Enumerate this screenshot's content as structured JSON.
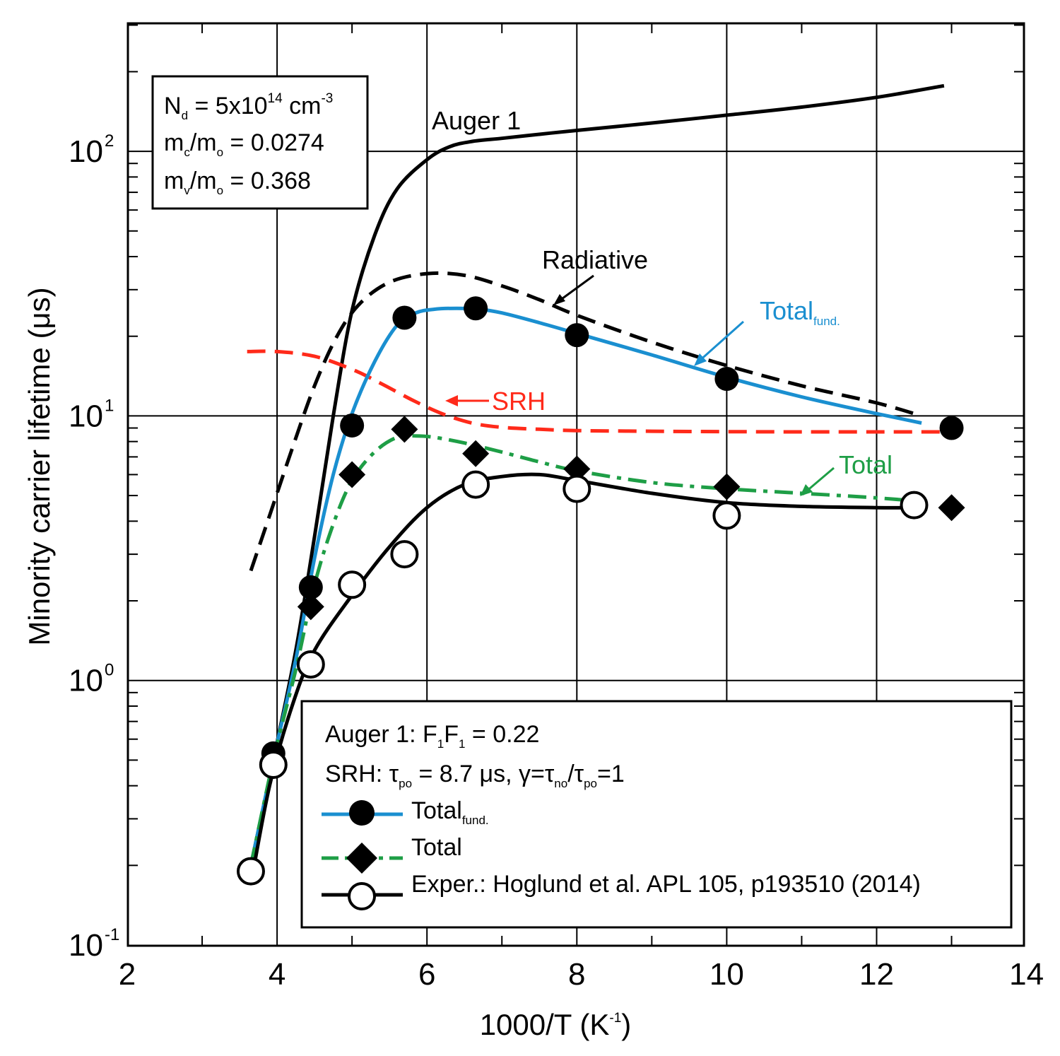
{
  "chart_data": {
    "type": "line",
    "x_scale": "linear",
    "y_scale": "log",
    "xlim": [
      2,
      14
    ],
    "ylim": [
      0.1,
      310
    ],
    "xlabel": "1000/T (K",
    "xlabel_sup": "-1",
    "xlabel_end": ")",
    "ylabel": "Minority carrier lifetime (μs)",
    "x_ticks": [
      "2",
      "4",
      "6",
      "8",
      "10",
      "12",
      "14"
    ],
    "x_tick_values": [
      2,
      4,
      6,
      8,
      10,
      12,
      14
    ],
    "y_ticks": [
      {
        "value": 0.1,
        "base": "10",
        "exp": "-1"
      },
      {
        "value": 1,
        "base": "10",
        "exp": "0"
      },
      {
        "value": 10,
        "base": "10",
        "exp": "1"
      },
      {
        "value": 100,
        "base": "10",
        "exp": "2"
      }
    ],
    "grid_x": [
      4,
      6,
      8,
      10,
      12
    ],
    "grid_y": [
      1,
      10,
      100
    ],
    "colors": {
      "auger": "#000000",
      "radiative": "#000000",
      "srh": "#ff2a1a",
      "total_fund": "#1a8fd0",
      "total": "#1e9e46",
      "exper": "#000000"
    },
    "series": [
      {
        "name": "Auger 1",
        "style": "solid",
        "x": [
          3.65,
          3.95,
          4.25,
          4.5,
          4.75,
          5.0,
          5.3,
          5.6,
          6.0,
          6.3,
          6.6,
          7.0,
          7.5,
          8.0,
          9.0,
          10.0,
          11.0,
          12.0,
          12.9
        ],
        "y": [
          0.2,
          0.5,
          1.3,
          3.5,
          10.0,
          25.0,
          48.0,
          72.0,
          93.0,
          104.0,
          109.0,
          112.0,
          116.0,
          120.0,
          128.0,
          137.0,
          147.0,
          160.0,
          177.0
        ]
      },
      {
        "name": "Radiative",
        "style": "dashed",
        "x": [
          3.65,
          3.9,
          4.2,
          4.5,
          4.8,
          5.1,
          5.5,
          6.0,
          6.5,
          7.0,
          7.5,
          8.0,
          9.0,
          10.0,
          11.0,
          12.0,
          12.6
        ],
        "y": [
          2.6,
          4.2,
          7.5,
          13.0,
          20.0,
          26.5,
          32.0,
          34.5,
          34.0,
          31.0,
          27.5,
          24.0,
          19.0,
          15.5,
          13.0,
          11.2,
          10.0
        ]
      },
      {
        "name": "SRH",
        "style": "dashed",
        "x": [
          3.6,
          4.0,
          4.5,
          5.0,
          5.4,
          5.8,
          6.2,
          6.6,
          7.0,
          7.5,
          8.0,
          9.0,
          10.0,
          11.0,
          12.0,
          12.9
        ],
        "y": [
          17.5,
          17.5,
          16.8,
          15.0,
          13.2,
          11.5,
          10.2,
          9.4,
          9.05,
          8.9,
          8.8,
          8.75,
          8.72,
          8.7,
          8.7,
          8.7
        ]
      },
      {
        "name": "Total_fund.",
        "style": "solid",
        "x": [
          3.65,
          3.95,
          4.25,
          4.5,
          4.75,
          5.0,
          5.3,
          5.6,
          5.85,
          6.1,
          6.4,
          6.7,
          7.0,
          7.5,
          8.0,
          9.0,
          10.0,
          11.0,
          12.0,
          12.6
        ],
        "y": [
          0.2,
          0.5,
          1.2,
          2.9,
          6.0,
          10.2,
          16.0,
          22.0,
          24.5,
          25.3,
          25.5,
          25.3,
          24.5,
          22.5,
          20.5,
          17.0,
          14.0,
          11.8,
          10.2,
          9.4
        ]
      },
      {
        "name": "Total",
        "style": "dashdot",
        "x": [
          3.65,
          3.95,
          4.25,
          4.5,
          4.75,
          5.0,
          5.3,
          5.6,
          5.85,
          6.1,
          6.5,
          7.0,
          7.5,
          8.0,
          9.0,
          10.0,
          11.0,
          12.0,
          12.6
        ],
        "y": [
          0.2,
          0.5,
          1.1,
          2.3,
          3.9,
          5.7,
          7.3,
          8.3,
          8.4,
          8.3,
          7.9,
          7.3,
          6.7,
          6.2,
          5.6,
          5.3,
          5.1,
          4.9,
          4.75
        ]
      },
      {
        "name": "Exper. fit",
        "style": "solid",
        "x": [
          3.65,
          3.9,
          4.2,
          4.5,
          5.0,
          5.5,
          6.0,
          6.5,
          7.0,
          7.5,
          8.0,
          9.0,
          10.0,
          11.0,
          12.0,
          12.5
        ],
        "y": [
          0.17,
          0.4,
          0.8,
          1.3,
          2.1,
          3.2,
          4.5,
          5.5,
          5.9,
          6.0,
          5.7,
          5.1,
          4.7,
          4.55,
          4.5,
          4.5
        ]
      }
    ],
    "markers": {
      "total_fund": {
        "x": [
          3.65,
          3.95,
          4.45,
          5.0,
          5.7,
          6.65,
          8.0,
          10.0,
          13.0
        ],
        "y": [
          0.19,
          0.53,
          2.25,
          9.2,
          23.5,
          25.5,
          20.2,
          13.8,
          9.0
        ]
      },
      "total": {
        "x": [
          3.65,
          3.95,
          4.45,
          5.0,
          5.7,
          6.65,
          8.0,
          10.0,
          13.0
        ],
        "y": [
          0.19,
          0.5,
          1.9,
          6.0,
          8.9,
          7.2,
          6.3,
          5.4,
          4.5
        ]
      },
      "exper": {
        "x": [
          3.65,
          3.95,
          4.45,
          5.0,
          5.7,
          6.65,
          8.0,
          10.0,
          12.5
        ],
        "y": [
          0.19,
          0.48,
          1.15,
          2.3,
          3.0,
          5.5,
          5.3,
          4.2,
          4.6
        ]
      }
    },
    "annotations": {
      "auger": "Auger 1",
      "radiative": "Radiative",
      "srh": "SRH",
      "total_fund": "Total",
      "total_fund_sub": "fund.",
      "total": "Total"
    },
    "param_box": {
      "nd_label": "N",
      "nd_sub": "d",
      "nd_value": " = 5x10",
      "nd_exp": "14",
      "nd_unit": " cm",
      "nd_unit_exp": "-3",
      "mc_m": "m",
      "mc_sub": "c",
      "mc_slash": "/m",
      "mc_sub2": "o",
      "mc_value": " = 0.0274",
      "mv_m": "m",
      "mv_sub": "v",
      "mv_slash": "/m",
      "mv_sub2": "o",
      "mv_value": " = 0.368"
    },
    "legend": {
      "placement": "bottom-right",
      "auger_line_a": "Auger 1: F",
      "auger_sub1": "1",
      "auger_f": "F",
      "auger_sub2": "1",
      "auger_value": " = 0.22",
      "srh_a": "SRH: τ",
      "srh_sub1": "po",
      "srh_b": " = 8.7 μs, γ=τ",
      "srh_sub2": "no",
      "srh_c": "/τ",
      "srh_sub3": "po",
      "srh_d": "=1",
      "entry_total_fund": "Total",
      "entry_total_fund_sub": "fund.",
      "entry_total": "Total",
      "entry_exper": "Exper.: Hoglund et al. APL 105, p193510 (2014)"
    }
  }
}
